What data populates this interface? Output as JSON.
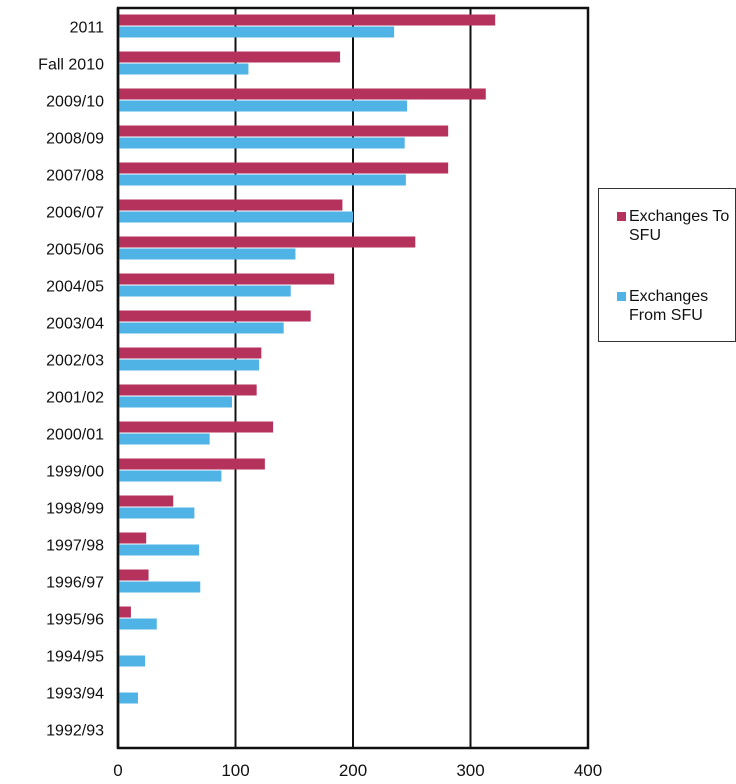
{
  "chart_data": {
    "type": "bar",
    "orientation": "horizontal",
    "categories": [
      "2011",
      "Fall 2010",
      "2009/10",
      "2008/09",
      "2007/08",
      "2006/07",
      "2005/06",
      "2004/05",
      "2003/04",
      "2002/03",
      "2001/02",
      "2000/01",
      "1999/00",
      "1998/99",
      "1997/98",
      "1996/97",
      "1995/96",
      "1994/95",
      "1993/94",
      "1992/93"
    ],
    "series": [
      {
        "name": "Exchanges To SFU",
        "color": "#b5325c",
        "values": [
          321,
          189,
          313,
          281,
          281,
          191,
          253,
          184,
          164,
          122,
          118,
          132,
          125,
          47,
          24,
          26,
          11,
          1,
          0,
          0
        ]
      },
      {
        "name": "Exchanges From SFU",
        "color": "#4fb3e6",
        "values": [
          235,
          111,
          246,
          244,
          245,
          200,
          151,
          147,
          141,
          120,
          97,
          78,
          88,
          65,
          69,
          70,
          33,
          23,
          17,
          0
        ]
      }
    ],
    "xlim": [
      0,
      400
    ],
    "xticks": [
      "0",
      "100",
      "200",
      "300",
      "400"
    ],
    "title": "",
    "xlabel": "",
    "ylabel": "",
    "grid": "vertical",
    "legend_position": "right"
  }
}
